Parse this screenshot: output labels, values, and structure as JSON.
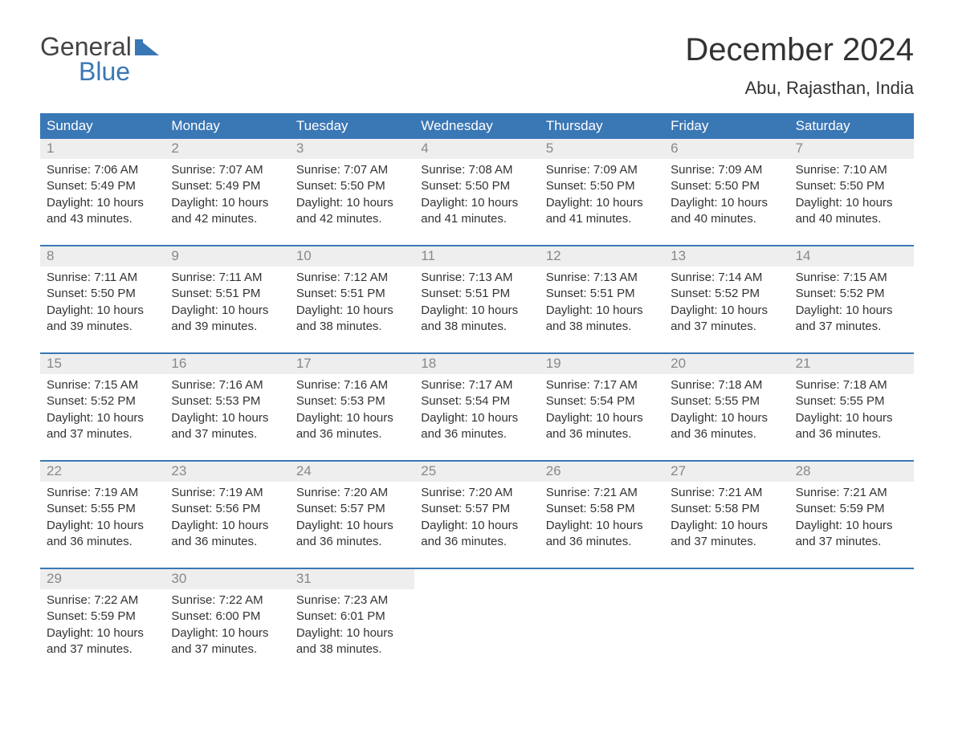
{
  "logo": {
    "text1": "General",
    "text2": "Blue",
    "accent_color": "#3a77b5"
  },
  "title": "December 2024",
  "location": "Abu, Rajasthan, India",
  "colors": {
    "header_bg": "#3a77b5",
    "header_text": "#ffffff",
    "daynum_bg": "#eeeeee",
    "daynum_text": "#888888",
    "body_text": "#333333",
    "background": "#ffffff",
    "week_border": "#3a77b5"
  },
  "day_headers": [
    "Sunday",
    "Monday",
    "Tuesday",
    "Wednesday",
    "Thursday",
    "Friday",
    "Saturday"
  ],
  "weeks": [
    [
      {
        "n": "1",
        "sunrise": "Sunrise: 7:06 AM",
        "sunset": "Sunset: 5:49 PM",
        "daylight": "Daylight: 10 hours and 43 minutes."
      },
      {
        "n": "2",
        "sunrise": "Sunrise: 7:07 AM",
        "sunset": "Sunset: 5:49 PM",
        "daylight": "Daylight: 10 hours and 42 minutes."
      },
      {
        "n": "3",
        "sunrise": "Sunrise: 7:07 AM",
        "sunset": "Sunset: 5:50 PM",
        "daylight": "Daylight: 10 hours and 42 minutes."
      },
      {
        "n": "4",
        "sunrise": "Sunrise: 7:08 AM",
        "sunset": "Sunset: 5:50 PM",
        "daylight": "Daylight: 10 hours and 41 minutes."
      },
      {
        "n": "5",
        "sunrise": "Sunrise: 7:09 AM",
        "sunset": "Sunset: 5:50 PM",
        "daylight": "Daylight: 10 hours and 41 minutes."
      },
      {
        "n": "6",
        "sunrise": "Sunrise: 7:09 AM",
        "sunset": "Sunset: 5:50 PM",
        "daylight": "Daylight: 10 hours and 40 minutes."
      },
      {
        "n": "7",
        "sunrise": "Sunrise: 7:10 AM",
        "sunset": "Sunset: 5:50 PM",
        "daylight": "Daylight: 10 hours and 40 minutes."
      }
    ],
    [
      {
        "n": "8",
        "sunrise": "Sunrise: 7:11 AM",
        "sunset": "Sunset: 5:50 PM",
        "daylight": "Daylight: 10 hours and 39 minutes."
      },
      {
        "n": "9",
        "sunrise": "Sunrise: 7:11 AM",
        "sunset": "Sunset: 5:51 PM",
        "daylight": "Daylight: 10 hours and 39 minutes."
      },
      {
        "n": "10",
        "sunrise": "Sunrise: 7:12 AM",
        "sunset": "Sunset: 5:51 PM",
        "daylight": "Daylight: 10 hours and 38 minutes."
      },
      {
        "n": "11",
        "sunrise": "Sunrise: 7:13 AM",
        "sunset": "Sunset: 5:51 PM",
        "daylight": "Daylight: 10 hours and 38 minutes."
      },
      {
        "n": "12",
        "sunrise": "Sunrise: 7:13 AM",
        "sunset": "Sunset: 5:51 PM",
        "daylight": "Daylight: 10 hours and 38 minutes."
      },
      {
        "n": "13",
        "sunrise": "Sunrise: 7:14 AM",
        "sunset": "Sunset: 5:52 PM",
        "daylight": "Daylight: 10 hours and 37 minutes."
      },
      {
        "n": "14",
        "sunrise": "Sunrise: 7:15 AM",
        "sunset": "Sunset: 5:52 PM",
        "daylight": "Daylight: 10 hours and 37 minutes."
      }
    ],
    [
      {
        "n": "15",
        "sunrise": "Sunrise: 7:15 AM",
        "sunset": "Sunset: 5:52 PM",
        "daylight": "Daylight: 10 hours and 37 minutes."
      },
      {
        "n": "16",
        "sunrise": "Sunrise: 7:16 AM",
        "sunset": "Sunset: 5:53 PM",
        "daylight": "Daylight: 10 hours and 37 minutes."
      },
      {
        "n": "17",
        "sunrise": "Sunrise: 7:16 AM",
        "sunset": "Sunset: 5:53 PM",
        "daylight": "Daylight: 10 hours and 36 minutes."
      },
      {
        "n": "18",
        "sunrise": "Sunrise: 7:17 AM",
        "sunset": "Sunset: 5:54 PM",
        "daylight": "Daylight: 10 hours and 36 minutes."
      },
      {
        "n": "19",
        "sunrise": "Sunrise: 7:17 AM",
        "sunset": "Sunset: 5:54 PM",
        "daylight": "Daylight: 10 hours and 36 minutes."
      },
      {
        "n": "20",
        "sunrise": "Sunrise: 7:18 AM",
        "sunset": "Sunset: 5:55 PM",
        "daylight": "Daylight: 10 hours and 36 minutes."
      },
      {
        "n": "21",
        "sunrise": "Sunrise: 7:18 AM",
        "sunset": "Sunset: 5:55 PM",
        "daylight": "Daylight: 10 hours and 36 minutes."
      }
    ],
    [
      {
        "n": "22",
        "sunrise": "Sunrise: 7:19 AM",
        "sunset": "Sunset: 5:55 PM",
        "daylight": "Daylight: 10 hours and 36 minutes."
      },
      {
        "n": "23",
        "sunrise": "Sunrise: 7:19 AM",
        "sunset": "Sunset: 5:56 PM",
        "daylight": "Daylight: 10 hours and 36 minutes."
      },
      {
        "n": "24",
        "sunrise": "Sunrise: 7:20 AM",
        "sunset": "Sunset: 5:57 PM",
        "daylight": "Daylight: 10 hours and 36 minutes."
      },
      {
        "n": "25",
        "sunrise": "Sunrise: 7:20 AM",
        "sunset": "Sunset: 5:57 PM",
        "daylight": "Daylight: 10 hours and 36 minutes."
      },
      {
        "n": "26",
        "sunrise": "Sunrise: 7:21 AM",
        "sunset": "Sunset: 5:58 PM",
        "daylight": "Daylight: 10 hours and 36 minutes."
      },
      {
        "n": "27",
        "sunrise": "Sunrise: 7:21 AM",
        "sunset": "Sunset: 5:58 PM",
        "daylight": "Daylight: 10 hours and 37 minutes."
      },
      {
        "n": "28",
        "sunrise": "Sunrise: 7:21 AM",
        "sunset": "Sunset: 5:59 PM",
        "daylight": "Daylight: 10 hours and 37 minutes."
      }
    ],
    [
      {
        "n": "29",
        "sunrise": "Sunrise: 7:22 AM",
        "sunset": "Sunset: 5:59 PM",
        "daylight": "Daylight: 10 hours and 37 minutes."
      },
      {
        "n": "30",
        "sunrise": "Sunrise: 7:22 AM",
        "sunset": "Sunset: 6:00 PM",
        "daylight": "Daylight: 10 hours and 37 minutes."
      },
      {
        "n": "31",
        "sunrise": "Sunrise: 7:23 AM",
        "sunset": "Sunset: 6:01 PM",
        "daylight": "Daylight: 10 hours and 38 minutes."
      },
      null,
      null,
      null,
      null
    ]
  ]
}
